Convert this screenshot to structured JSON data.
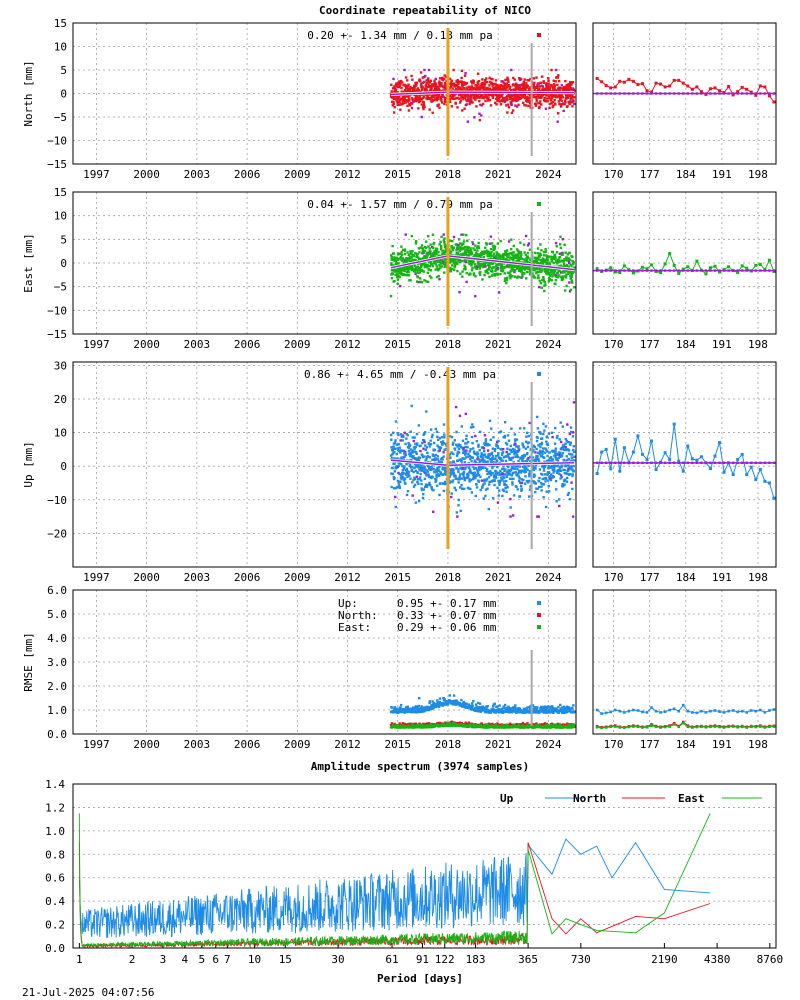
{
  "header": {
    "title": "Coordinate repeatability of NICO",
    "timestamp": "21-Jul-2025 04:07:56"
  },
  "colors": {
    "north": "#e8141c",
    "east": "#14b414",
    "up": "#1e8ce6",
    "model": "#9b1fd1",
    "event_orange": "#e8a020",
    "event_gray": "#a8a8a8"
  },
  "chart_data": [
    {
      "type": "scatter",
      "panel": "north",
      "ylabel": "North [mm]",
      "ylim": [
        -15,
        15
      ],
      "yticks": [
        "15",
        "10",
        "5",
        "0",
        "−5",
        "−10",
        "−15"
      ],
      "xlim": [
        1995.6,
        2025.65
      ],
      "xticks": [
        "1997",
        "2000",
        "2003",
        "2006",
        "2009",
        "2012",
        "2015",
        "2018",
        "2021",
        "2024"
      ],
      "annotation": "0.20 +- 1.34 mm /  0.13 mm pa",
      "series": [
        {
          "color_key": "north",
          "start": 2014.6,
          "end": 2025.55,
          "noise": 1.34,
          "trend": [
            [
              2014.6,
              -0.2
            ],
            [
              2018.0,
              0.3
            ],
            [
              2025.55,
              0.2
            ]
          ],
          "data_min": -6,
          "data_max": 5
        }
      ],
      "events": [
        2018.0,
        2023.0
      ],
      "zoom": {
        "xlim": [
          166,
          201.5
        ],
        "xticks": [
          "170",
          "177",
          "184",
          "191",
          "198"
        ],
        "values": [
          3.2,
          2.5,
          1.7,
          1.2,
          1.4,
          2.6,
          2.4,
          3.0,
          2.6,
          1.9,
          2.1,
          0.6,
          0.3,
          2.2,
          2.0,
          1.4,
          1.6,
          2.8,
          2.8,
          2.2,
          1.6,
          0.9,
          1.4,
          0.4,
          -0.2,
          1.0,
          1.2,
          0.6,
          0.2,
          1.5,
          -0.3,
          0.4,
          1.3,
          0.9,
          0.3,
          -0.4,
          1.6,
          1.4,
          -0.5,
          -1.8
        ],
        "model": 0.0
      }
    },
    {
      "type": "scatter",
      "panel": "east",
      "ylabel": "East [mm]",
      "ylim": [
        -15,
        15
      ],
      "yticks": [
        "15",
        "10",
        "5",
        "0",
        "−5",
        "−10",
        "−15"
      ],
      "xlim": [
        1995.6,
        2025.65
      ],
      "xticks": [
        "1997",
        "2000",
        "2003",
        "2006",
        "2009",
        "2012",
        "2015",
        "2018",
        "2021",
        "2024"
      ],
      "annotation": "0.04 +- 1.57 mm /  0.79 mm pa",
      "series": [
        {
          "color_key": "east",
          "start": 2014.6,
          "end": 2025.55,
          "noise": 1.57,
          "trend": [
            [
              2014.6,
              -1.0
            ],
            [
              2018.0,
              1.5
            ],
            [
              2025.55,
              -1.4
            ]
          ],
          "data_min": -7,
          "data_max": 6
        }
      ],
      "events": [
        2018.0,
        2023.0
      ],
      "zoom": {
        "xlim": [
          166,
          201.5
        ],
        "xticks": [
          "170",
          "177",
          "184",
          "191",
          "198"
        ],
        "values": [
          -1.2,
          -1.8,
          -1.5,
          -1.0,
          -1.9,
          -2.0,
          -0.6,
          -1.4,
          -2.1,
          -1.7,
          -0.9,
          -1.2,
          -0.4,
          -1.8,
          -2.0,
          -0.2,
          2.0,
          -0.5,
          -2.2,
          -1.3,
          -0.8,
          -1.6,
          0.4,
          -1.5,
          -2.3,
          -1.0,
          -0.7,
          -1.9,
          -1.4,
          -0.8,
          -1.6,
          -2.0,
          -0.6,
          -1.1,
          -1.7,
          -0.5,
          -0.3,
          -1.4,
          0.6,
          -1.8
        ],
        "model": -1.6
      }
    },
    {
      "type": "scatter",
      "panel": "up",
      "ylabel": "Up [mm]",
      "ylim": [
        -30,
        31
      ],
      "yticks": [
        "30",
        "20",
        "10",
        "0",
        "−10",
        "−20"
      ],
      "ytick_values": [
        30,
        20,
        10,
        0,
        -10,
        -20
      ],
      "xlim": [
        1995.6,
        2025.65
      ],
      "xticks": [
        "1997",
        "2000",
        "2003",
        "2006",
        "2009",
        "2012",
        "2015",
        "2018",
        "2021",
        "2024"
      ],
      "annotation": "0.86 +- 4.65 mm / -0.43 mm pa",
      "series": [
        {
          "color_key": "up",
          "start": 2014.6,
          "end": 2025.55,
          "noise": 4.65,
          "trend": [
            [
              2014.6,
              1.8
            ],
            [
              2018.0,
              0.3
            ],
            [
              2025.55,
              1.0
            ]
          ],
          "data_min": -15,
          "data_max": 19
        }
      ],
      "events": [
        2018.0,
        2023.0
      ],
      "zoom": {
        "xlim": [
          166,
          201.5
        ],
        "xticks": [
          "170",
          "177",
          "184",
          "191",
          "198"
        ],
        "values": [
          -2.2,
          4.2,
          5.0,
          -0.8,
          8.0,
          -1.5,
          5.5,
          1.0,
          4.2,
          9.0,
          3.5,
          2.0,
          7.5,
          -1.0,
          1.2,
          4.0,
          2.0,
          12.5,
          1.5,
          -1.5,
          6.0,
          2.2,
          1.8,
          2.8,
          1.0,
          -0.7,
          3.0,
          7.0,
          -1.8,
          1.0,
          -2.5,
          2.0,
          3.5,
          -2.5,
          -0.3,
          -4.0,
          -1.0,
          -4.5,
          -5.0,
          -9.5
        ],
        "model": 1.0
      }
    },
    {
      "type": "scatter",
      "panel": "rmse",
      "ylabel": "RMSE [mm]",
      "ylim": [
        0,
        6
      ],
      "yticks": [
        "6.0",
        "5.0",
        "4.0",
        "3.0",
        "2.0",
        "1.0",
        "0.0"
      ],
      "ytick_values": [
        6,
        5,
        4,
        3,
        2,
        1,
        0
      ],
      "xlim": [
        1995.6,
        2025.65
      ],
      "xticks": [
        "1997",
        "2000",
        "2003",
        "2006",
        "2009",
        "2012",
        "2015",
        "2018",
        "2021",
        "2024"
      ],
      "legend": [
        {
          "name": "Up:",
          "value": "0.95 +- 0.17 mm",
          "color_key": "up"
        },
        {
          "name": "North:",
          "value": "0.33 +- 0.07 mm",
          "color_key": "north"
        },
        {
          "name": "East:",
          "value": "0.29 +- 0.06 mm",
          "color_key": "east"
        }
      ],
      "series": [
        {
          "color_key": "up",
          "mean": 0.95,
          "noise": 0.17
        },
        {
          "color_key": "north",
          "mean": 0.33,
          "noise": 0.07
        },
        {
          "color_key": "east",
          "mean": 0.29,
          "noise": 0.06
        }
      ],
      "events": [
        2023.0
      ],
      "zoom": {
        "xlim": [
          166,
          201.5
        ],
        "xticks": [
          "170",
          "177",
          "184",
          "191",
          "198"
        ],
        "up_values": [
          1.0,
          0.85,
          0.88,
          0.92,
          1.0,
          0.95,
          0.9,
          0.95,
          1.0,
          0.98,
          0.92,
          0.9,
          1.1,
          0.95,
          0.9,
          0.93,
          1.0,
          1.05,
          0.95,
          1.2,
          0.95,
          0.9,
          0.88,
          0.95,
          0.9,
          0.95,
          0.98,
          0.93,
          0.9,
          0.95,
          0.98,
          0.92,
          0.95,
          0.9,
          0.98,
          0.95,
          1.0,
          0.9,
          0.98,
          1.02
        ],
        "north_values": [
          0.32,
          0.28,
          0.3,
          0.33,
          0.35,
          0.3,
          0.28,
          0.32,
          0.35,
          0.33,
          0.3,
          0.31,
          0.4,
          0.33,
          0.3,
          0.32,
          0.35,
          0.45,
          0.33,
          0.5,
          0.35,
          0.3,
          0.32,
          0.33,
          0.31,
          0.33,
          0.35,
          0.32,
          0.3,
          0.33,
          0.34,
          0.31,
          0.33,
          0.3,
          0.33,
          0.32,
          0.35,
          0.3,
          0.33,
          0.34
        ],
        "east_values": [
          0.28,
          0.25,
          0.27,
          0.3,
          0.31,
          0.27,
          0.26,
          0.29,
          0.31,
          0.3,
          0.27,
          0.28,
          0.35,
          0.3,
          0.27,
          0.29,
          0.31,
          0.4,
          0.3,
          0.45,
          0.3,
          0.27,
          0.29,
          0.3,
          0.28,
          0.3,
          0.31,
          0.29,
          0.27,
          0.3,
          0.31,
          0.28,
          0.3,
          0.27,
          0.3,
          0.29,
          0.31,
          0.27,
          0.3,
          0.31
        ]
      }
    },
    {
      "type": "line",
      "panel": "spectrum",
      "title": "Amplitude spectrum (3974 samples)",
      "xlabel": "Period [days]",
      "ylim": [
        0,
        1.4
      ],
      "yticks": [
        "1.4",
        "1.2",
        "1.0",
        "0.8",
        "0.6",
        "0.4",
        "0.2",
        "0.0"
      ],
      "ytick_values": [
        1.4,
        1.2,
        1.0,
        0.8,
        0.6,
        0.4,
        0.2,
        0.0
      ],
      "xscale": "log",
      "xlim": [
        0.92,
        9500
      ],
      "xticks": [
        1,
        2,
        3,
        4,
        5,
        6,
        7,
        10,
        15,
        30,
        61,
        91,
        122,
        183,
        365,
        730,
        2190,
        4380,
        8760
      ],
      "xtick_labels": [
        "1",
        "2",
        "3",
        "4",
        "5",
        "6",
        "7",
        "10",
        "15",
        "30",
        "61",
        "91",
        "122",
        "183",
        "365",
        "730",
        "2190",
        "4380",
        "8760"
      ],
      "legend": [
        "Up",
        "North",
        "East"
      ],
      "series": [
        {
          "name": "Up",
          "color_key": "up",
          "peaks": [
            [
              1,
              0.58
            ],
            [
              365,
              0.88
            ],
            [
              500,
              0.63
            ],
            [
              600,
              0.93
            ],
            [
              730,
              0.8
            ],
            [
              900,
              0.87
            ],
            [
              1100,
              0.6
            ],
            [
              1500,
              0.9
            ],
            [
              2190,
              0.5
            ],
            [
              4000,
              0.47
            ]
          ],
          "noise_level": 0.18
        },
        {
          "name": "North",
          "color_key": "north",
          "peaks": [
            [
              1,
              0.9
            ],
            [
              365,
              0.9
            ],
            [
              500,
              0.25
            ],
            [
              600,
              0.12
            ],
            [
              730,
              0.25
            ],
            [
              900,
              0.13
            ],
            [
              1500,
              0.27
            ],
            [
              2190,
              0.25
            ],
            [
              4000,
              0.38
            ]
          ],
          "noise_level": 0.04
        },
        {
          "name": "East",
          "color_key": "east",
          "peaks": [
            [
              1,
              1.15
            ],
            [
              365,
              0.84
            ],
            [
              500,
              0.12
            ],
            [
              600,
              0.25
            ],
            [
              730,
              0.2
            ],
            [
              900,
              0.15
            ],
            [
              1500,
              0.13
            ],
            [
              2190,
              0.3
            ],
            [
              4000,
              1.15
            ]
          ],
          "noise_level": 0.05
        }
      ]
    }
  ]
}
